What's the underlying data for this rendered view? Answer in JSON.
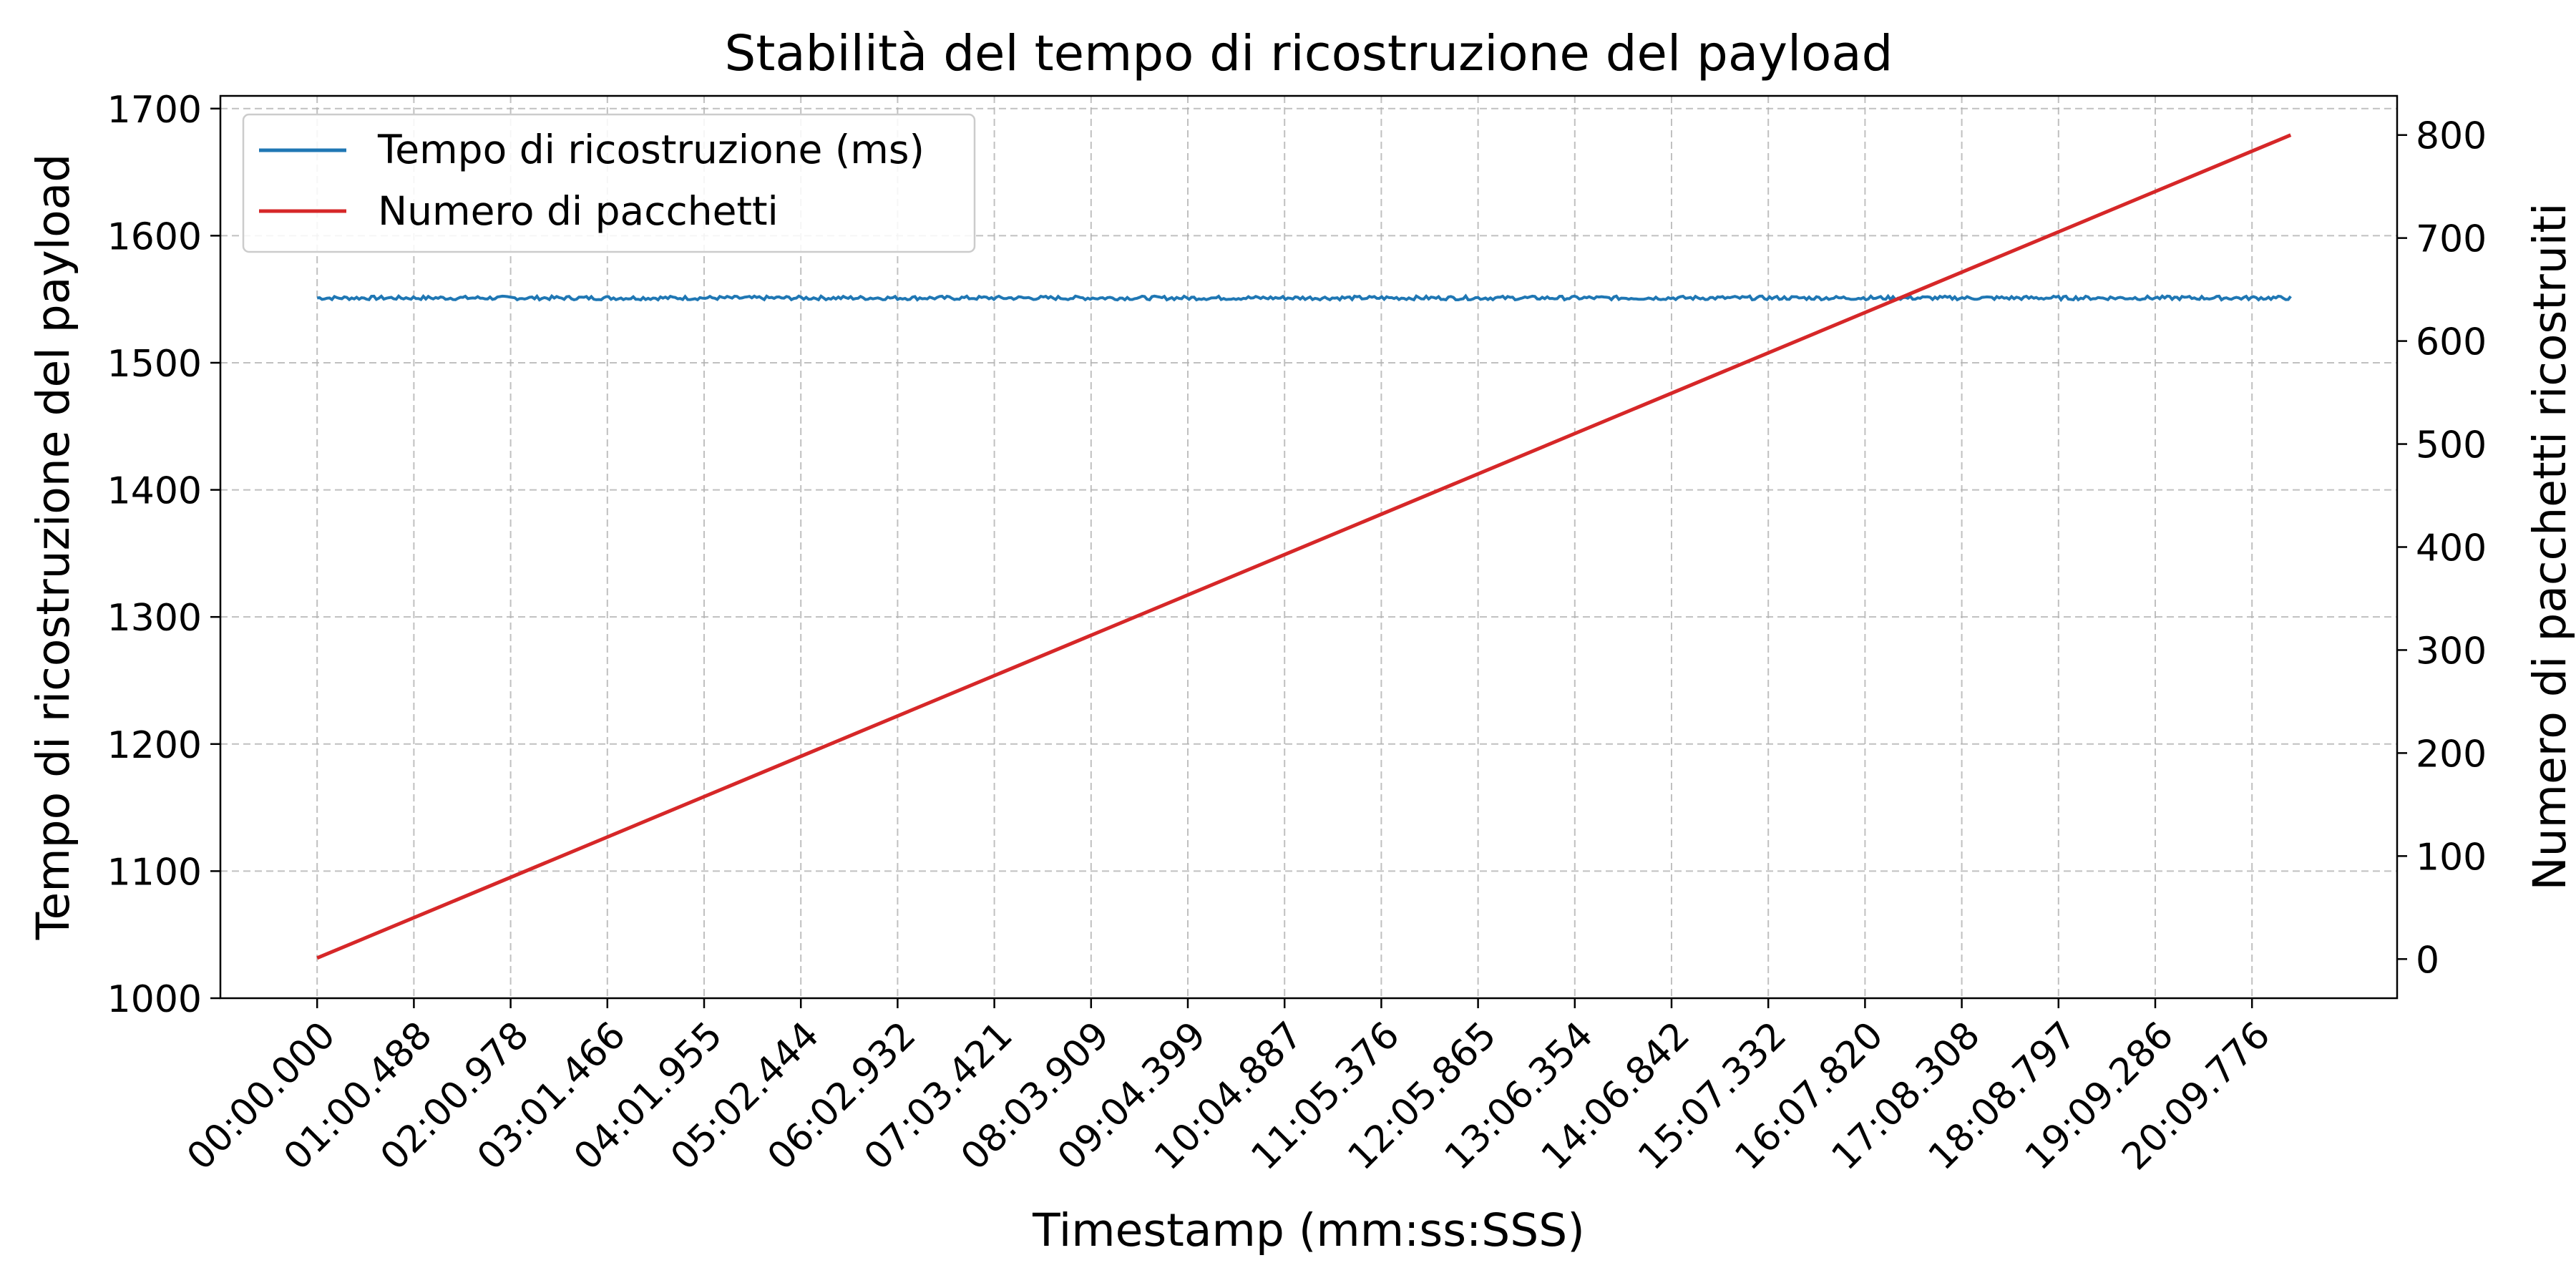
{
  "chart_data": {
    "type": "line",
    "title": "Stabilità del tempo di ricostruzione del payload",
    "xlabel": "Timestamp (mm:ss:SSS)",
    "ylabel": "Tempo di ricostruzione del payload",
    "y2label": "Numero di pacchetti ricostruiti",
    "x_ticks": [
      "00:00.000",
      "01:00.488",
      "02:00.978",
      "03:01.466",
      "04:01.955",
      "05:02.444",
      "06:02.932",
      "07:03.421",
      "08:03.909",
      "09:04.399",
      "10:04.887",
      "11:05.376",
      "12:05.865",
      "13:06.354",
      "14:06.842",
      "15:07.332",
      "16:07.820",
      "17:08.308",
      "18:08.797",
      "19:09.286",
      "20:09.776"
    ],
    "x_range_ticks": [
      -1,
      21.5
    ],
    "ylim": [
      1000,
      1710
    ],
    "y_ticks": [
      1000,
      1100,
      1200,
      1300,
      1400,
      1500,
      1600,
      1700
    ],
    "y2lim": [
      -38,
      838
    ],
    "y2_ticks": [
      0,
      100,
      200,
      300,
      400,
      500,
      600,
      700,
      800
    ],
    "grid": true,
    "legend_position": "upper-left",
    "series": [
      {
        "name": "Tempo di ricostruzione (ms)",
        "axis": "left",
        "color": "#1f77b4",
        "x_ticks_span": [
          0,
          20.4
        ],
        "value_approx": 1551,
        "jitter": 1.5,
        "points": 800
      },
      {
        "name": "Numero di pacchetti",
        "axis": "right",
        "color": "#d62728",
        "x_ticks_span": [
          0,
          20.4
        ],
        "start": 1,
        "end": 800
      }
    ]
  }
}
